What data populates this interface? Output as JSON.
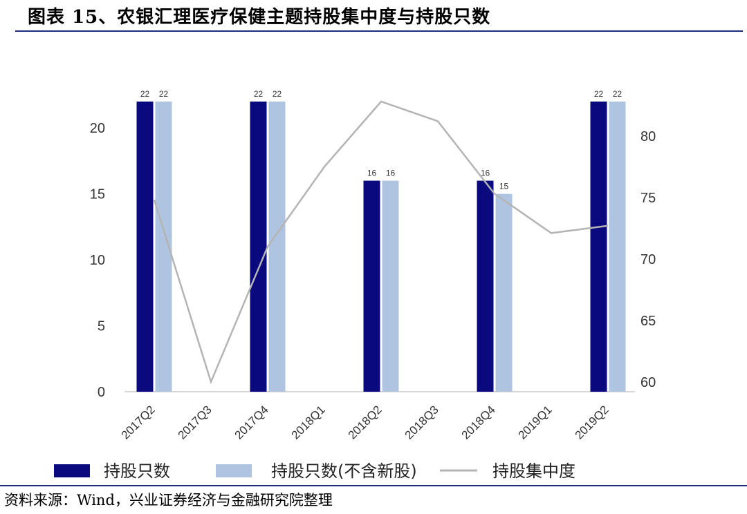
{
  "title": "图表 15、农银汇理医疗保健主题持股集中度与持股只数",
  "source": "资料来源：Wind，兴业证券经济与金融研究院整理",
  "colors": {
    "series1": "#0a0a7e",
    "series2": "#aec4e0",
    "line": "#b4b4b4",
    "rule": "#1c2f7a"
  },
  "chart_data": {
    "type": "bar",
    "categories": [
      "2017Q2",
      "2017Q3",
      "2017Q4",
      "2018Q1",
      "2018Q2",
      "2018Q3",
      "2018Q4",
      "2019Q1",
      "2019Q2"
    ],
    "series": [
      {
        "name": "持股只数",
        "type": "bar",
        "axis": "left",
        "values": [
          22,
          null,
          22,
          null,
          16,
          null,
          16,
          null,
          22
        ],
        "labels": [
          "22",
          "",
          "22",
          "",
          "16",
          "",
          "16",
          "",
          "22"
        ]
      },
      {
        "name": "持股只数(不含新股)",
        "type": "bar",
        "axis": "left",
        "values": [
          22,
          null,
          22,
          null,
          16,
          null,
          15,
          null,
          22
        ],
        "labels": [
          "22",
          "",
          "22",
          "",
          "16",
          "",
          "15",
          "",
          "22"
        ]
      },
      {
        "name": "持股集中度",
        "type": "line",
        "axis": "right",
        "values": [
          74.8,
          60.0,
          71.0,
          77.5,
          82.8,
          81.2,
          75.3,
          72.1,
          72.7
        ]
      }
    ],
    "yleft": {
      "ticks": [
        "0",
        "5",
        "10",
        "15",
        "20"
      ],
      "range": [
        0,
        22
      ]
    },
    "yright": {
      "ticks": [
        "60",
        "65",
        "70",
        "75",
        "80"
      ],
      "range": [
        59.2,
        82.8
      ]
    }
  }
}
